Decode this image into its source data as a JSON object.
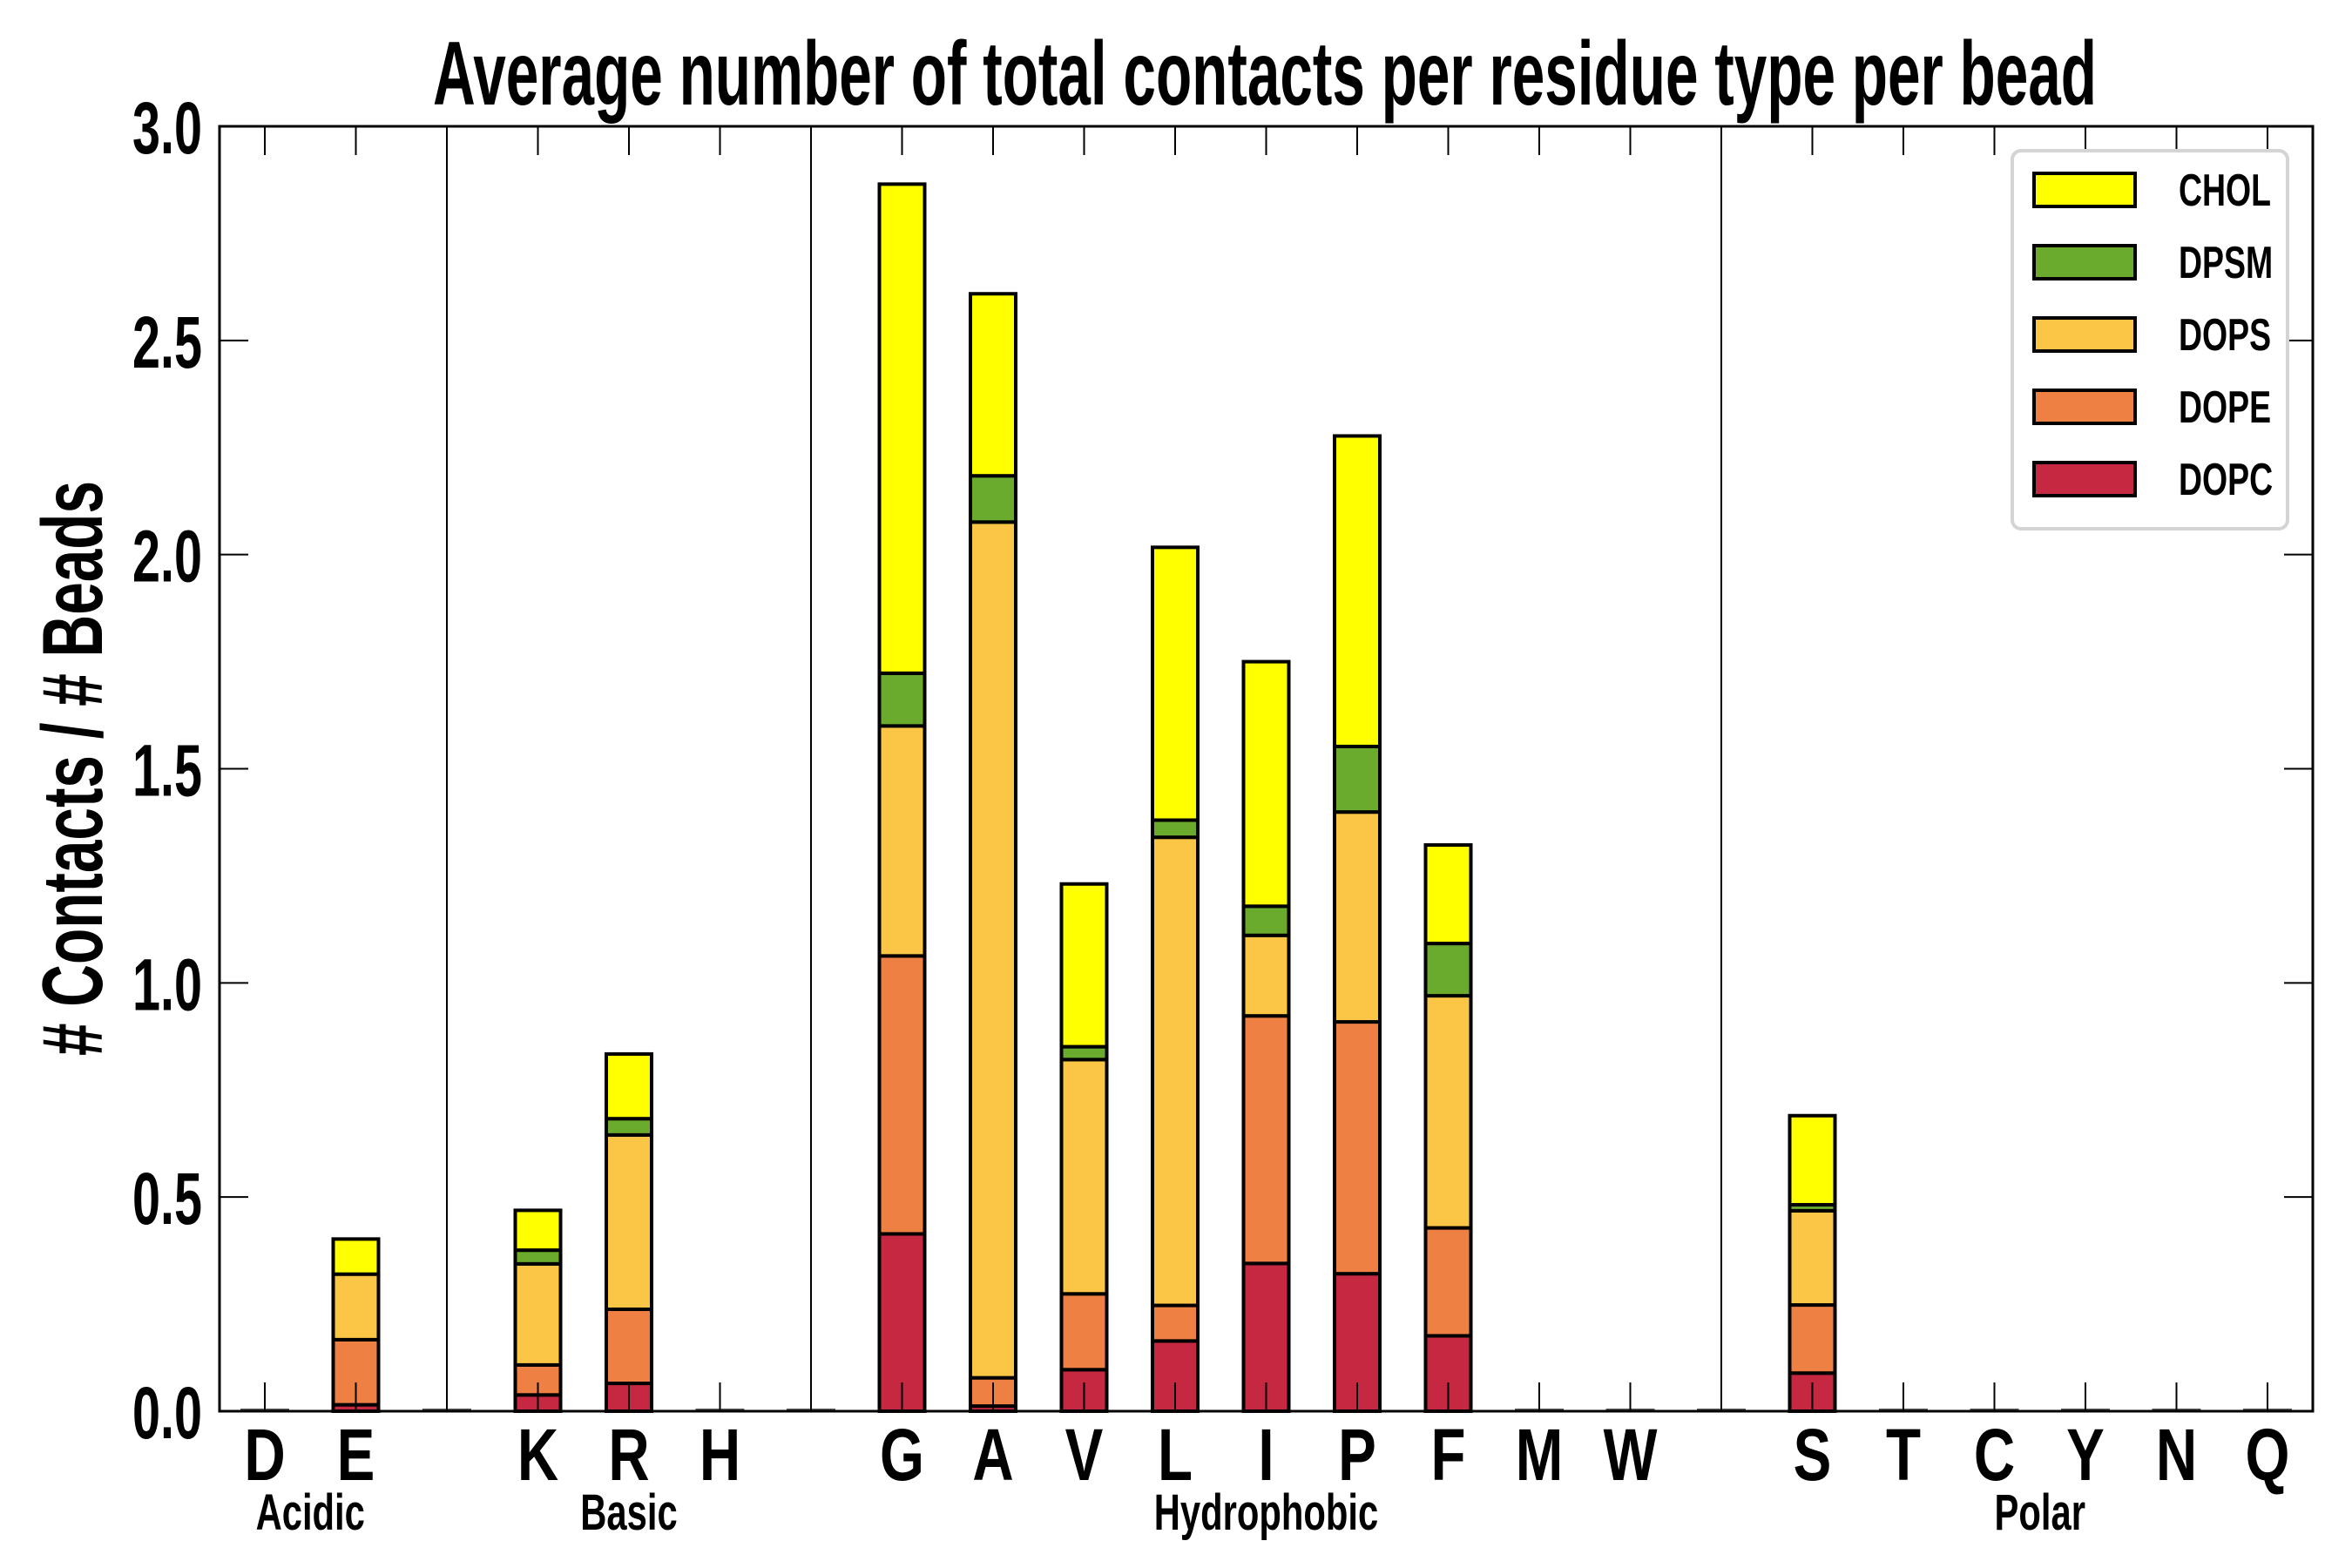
{
  "chart_data": {
    "type": "bar",
    "stacked": true,
    "title": "Average number of total contacts per residue type per bead",
    "xlabel": "",
    "ylabel": "# Contacts / # Beads",
    "ylim": [
      0,
      3.0
    ],
    "yticks": [
      "0.0",
      "0.5",
      "1.0",
      "1.5",
      "2.0",
      "2.5",
      "3.0"
    ],
    "ytick_values": [
      0,
      0.5,
      1.0,
      1.5,
      2.0,
      2.5,
      3.0
    ],
    "grid": false,
    "legend_position": "top-right",
    "slots": [
      "D",
      "E",
      "",
      "K",
      "R",
      "H",
      "",
      "G",
      "A",
      "V",
      "L",
      "I",
      "P",
      "F",
      "M",
      "W",
      "",
      "S",
      "T",
      "C",
      "Y",
      "N",
      "Q"
    ],
    "categories": [
      "D",
      "E",
      "K",
      "R",
      "H",
      "G",
      "A",
      "V",
      "L",
      "I",
      "P",
      "F",
      "M",
      "W",
      "S",
      "T",
      "C",
      "Y",
      "N",
      "Q"
    ],
    "groups": [
      {
        "label": "Acidic",
        "members": [
          "D",
          "E"
        ]
      },
      {
        "label": "Basic",
        "members": [
          "K",
          "R",
          "H"
        ]
      },
      {
        "label": "Hydrophobic",
        "members": [
          "G",
          "A",
          "V",
          "L",
          "I",
          "P",
          "F",
          "M",
          "W"
        ]
      },
      {
        "label": "Polar",
        "members": [
          "S",
          "T",
          "C",
          "Y",
          "N",
          "Q"
        ]
      }
    ],
    "series": [
      {
        "name": "DOPC",
        "color": "#c62842",
        "values": {
          "D": 0,
          "E": 0.015,
          "K": 0.038,
          "R": 0.065,
          "H": 0,
          "G": 0.414,
          "A": 0.012,
          "V": 0.097,
          "L": 0.164,
          "I": 0.345,
          "P": 0.321,
          "F": 0.176,
          "M": 0,
          "W": 0,
          "S": 0.089,
          "T": 0,
          "C": 0,
          "Y": 0,
          "N": 0,
          "Q": 0
        }
      },
      {
        "name": "DOPE",
        "color": "#ef8044",
        "values": {
          "D": 0,
          "E": 0.152,
          "K": 0.07,
          "R": 0.173,
          "H": 0,
          "G": 0.649,
          "A": 0.066,
          "V": 0.177,
          "L": 0.083,
          "I": 0.578,
          "P": 0.588,
          "F": 0.252,
          "M": 0,
          "W": 0,
          "S": 0.159,
          "T": 0,
          "C": 0,
          "Y": 0,
          "N": 0,
          "Q": 0
        }
      },
      {
        "name": "DOPS",
        "color": "#fbc545",
        "values": {
          "D": 0,
          "E": 0.153,
          "K": 0.236,
          "R": 0.407,
          "H": 0,
          "G": 0.537,
          "A": 1.998,
          "V": 0.547,
          "L": 1.093,
          "I": 0.188,
          "P": 0.49,
          "F": 0.542,
          "M": 0,
          "W": 0,
          "S": 0.22,
          "T": 0,
          "C": 0,
          "Y": 0,
          "N": 0,
          "Q": 0
        }
      },
      {
        "name": "DPSM",
        "color": "#6aab2e",
        "values": {
          "D": 0,
          "E": 0,
          "K": 0.032,
          "R": 0.038,
          "H": 0,
          "G": 0.123,
          "A": 0.108,
          "V": 0.03,
          "L": 0.04,
          "I": 0.068,
          "P": 0.153,
          "F": 0.122,
          "M": 0,
          "W": 0,
          "S": 0.014,
          "T": 0,
          "C": 0,
          "Y": 0,
          "N": 0,
          "Q": 0
        }
      },
      {
        "name": "CHOL",
        "color": "#ffff00",
        "values": {
          "D": 0,
          "E": 0.082,
          "K": 0.093,
          "R": 0.151,
          "H": 0,
          "G": 1.142,
          "A": 0.425,
          "V": 0.38,
          "L": 0.637,
          "I": 0.571,
          "P": 0.725,
          "F": 0.23,
          "M": 0,
          "W": 0,
          "S": 0.208,
          "T": 0,
          "C": 0,
          "Y": 0,
          "N": 0,
          "Q": 0
        }
      }
    ],
    "legend_order": [
      "CHOL",
      "DPSM",
      "DOPS",
      "DOPE",
      "DOPC"
    ]
  }
}
